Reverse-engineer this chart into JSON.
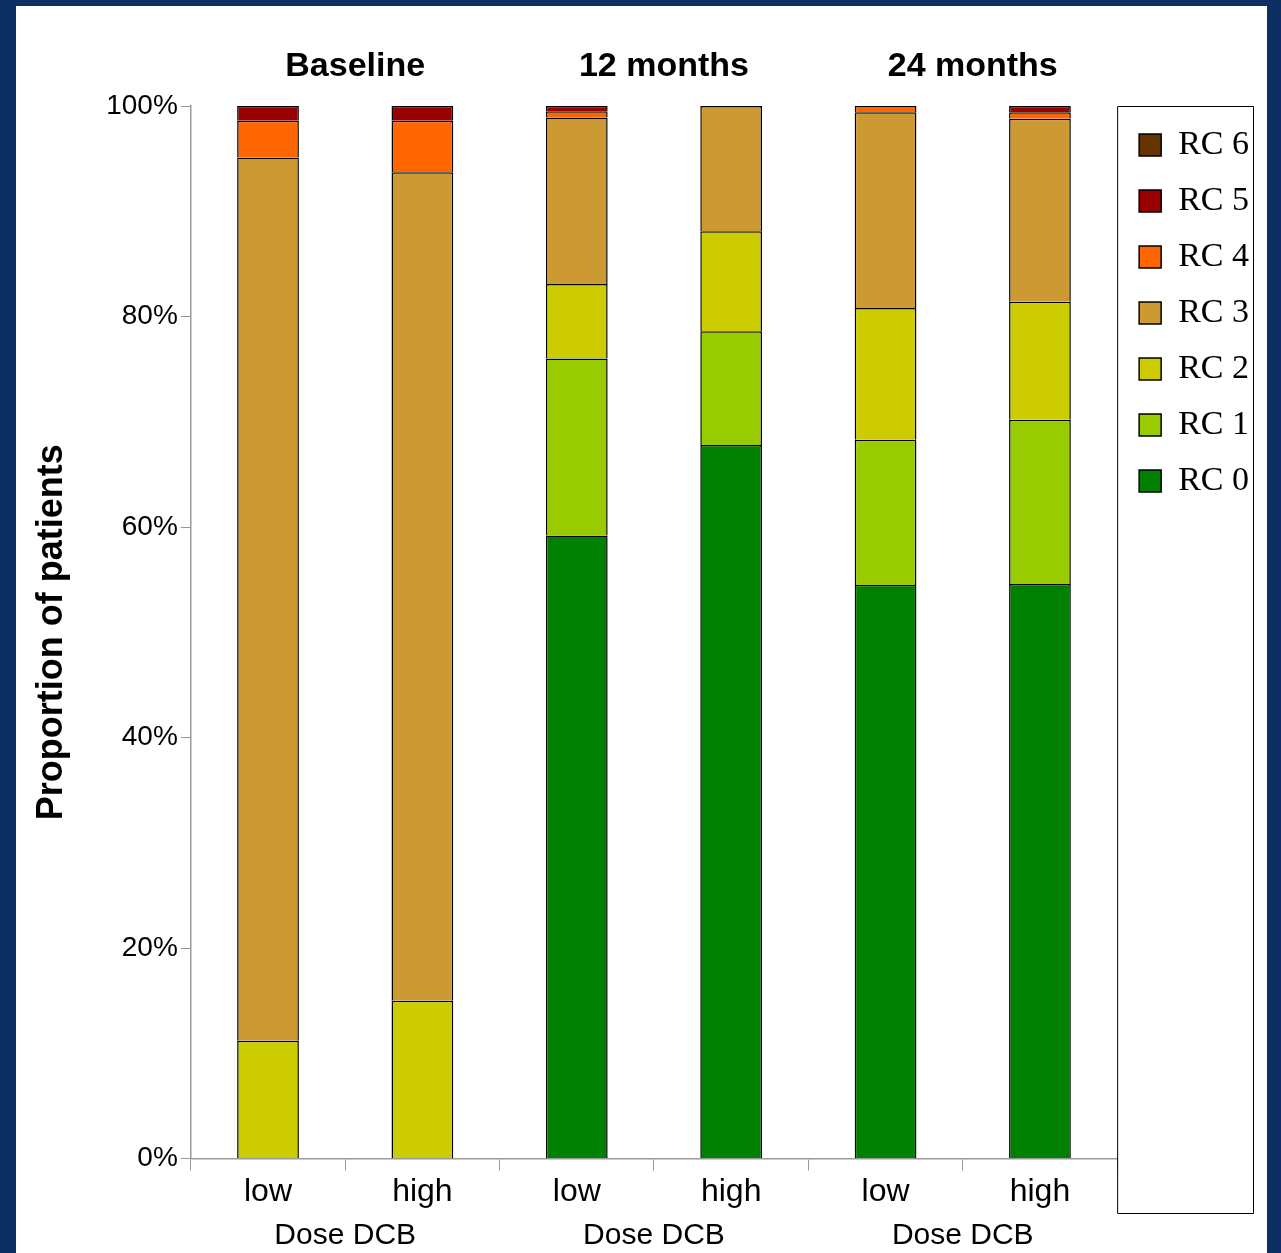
{
  "chart_data": {
    "type": "bar",
    "stacked": true,
    "ylabel": "Proportion of patients",
    "categories": [
      "low",
      "high",
      "low",
      "high",
      "low",
      "high"
    ],
    "annotations": [
      "Baseline",
      "12 months",
      "24 months",
      "Dose DCB",
      "Dose DCB",
      "Dose DCB"
    ],
    "series": [
      {
        "name": "RC 0",
        "color": "#008000",
        "values": [
          0,
          0,
          59.2,
          67.8,
          54.5,
          54.6
        ]
      },
      {
        "name": "RC 1",
        "color": "#99cc00",
        "values": [
          0,
          0,
          16.8,
          10.8,
          13.8,
          15.6
        ]
      },
      {
        "name": "RC 2",
        "color": "#cccc00",
        "values": [
          11.2,
          15.0,
          7.1,
          9.5,
          12.5,
          11.2
        ]
      },
      {
        "name": "RC 3",
        "color": "#cc9933",
        "values": [
          83.9,
          78.7,
          15.8,
          11.9,
          18.6,
          17.4
        ]
      },
      {
        "name": "RC 4",
        "color": "#ff6600",
        "values": [
          3.5,
          4.9,
          0.6,
          0,
          0.6,
          0.6
        ]
      },
      {
        "name": "RC 5",
        "color": "#990000",
        "values": [
          1.4,
          1.4,
          0.5,
          0,
          0,
          0.6
        ]
      },
      {
        "name": "RC 6",
        "color": "#663300",
        "values": [
          0,
          0,
          0,
          0,
          0,
          0
        ]
      }
    ],
    "ylim": [
      0,
      100
    ],
    "yticks": [
      {
        "value": 0,
        "label": "0%"
      },
      {
        "value": 20,
        "label": "20%"
      },
      {
        "value": 40,
        "label": "40%"
      },
      {
        "value": 60,
        "label": "60%"
      },
      {
        "value": 80,
        "label": "80%"
      },
      {
        "value": 100,
        "label": "100%"
      }
    ],
    "grid": false,
    "legend": "top right"
  }
}
